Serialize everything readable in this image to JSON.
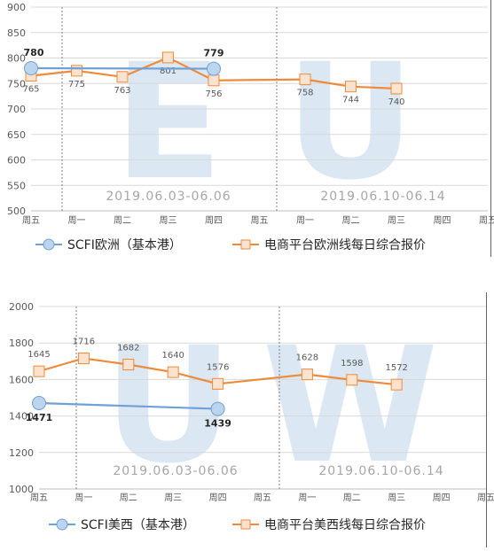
{
  "chart_data": [
    {
      "type": "line",
      "title": "",
      "watermark": [
        "E",
        "U"
      ],
      "categories": [
        "周五",
        "周一",
        "周二",
        "周三",
        "周四",
        "周五",
        "周一",
        "周二",
        "周三",
        "周四",
        "周五"
      ],
      "ylim": [
        500,
        900
      ],
      "yticks": [
        500,
        550,
        600,
        650,
        700,
        750,
        800,
        850,
        900
      ],
      "grid": true,
      "legend_position": "bottom",
      "week_labels": [
        "2019.06.03-06.06",
        "2019.06.10-06.14"
      ],
      "series": [
        {
          "name": "SCFI欧洲（基本港）",
          "color": "#6fa0d6",
          "marker": "circle",
          "points": [
            {
              "x": "周五",
              "y": 780,
              "label": "780"
            },
            {
              "x": "周四",
              "y": 779,
              "label": "779"
            }
          ]
        },
        {
          "name": "电商平台欧洲线每日综合报价",
          "color": "#ed8b3a",
          "marker": "square",
          "values": [
            765,
            775,
            763,
            801,
            756,
            null,
            758,
            744,
            740,
            null,
            null
          ],
          "labels": [
            "765",
            "775",
            "763",
            "801",
            "756",
            "",
            "758",
            "744",
            "740",
            "",
            ""
          ]
        }
      ]
    },
    {
      "type": "line",
      "title": "",
      "watermark": [
        "U",
        "W"
      ],
      "categories": [
        "周五",
        "周一",
        "周二",
        "周三",
        "周四",
        "周五",
        "周一",
        "周二",
        "周三",
        "周四",
        "周五"
      ],
      "ylim": [
        1000,
        2000
      ],
      "yticks": [
        1000,
        1200,
        1400,
        1600,
        1800,
        2000
      ],
      "grid": true,
      "legend_position": "bottom",
      "week_labels": [
        "2019.06.03-06.06",
        "2019.06.10-06.14"
      ],
      "series": [
        {
          "name": "SCFI美西（基本港）",
          "color": "#6fa0d6",
          "marker": "circle",
          "points": [
            {
              "x": "周五",
              "y": 1471,
              "label": "1471"
            },
            {
              "x": "周四",
              "y": 1439,
              "label": "1439"
            }
          ]
        },
        {
          "name": "电商平台美西线每日综合报价",
          "color": "#ed8b3a",
          "marker": "square",
          "values": [
            1645,
            1716,
            1682,
            1640,
            1576,
            null,
            1628,
            1598,
            1572,
            null,
            null
          ],
          "labels": [
            "1645",
            "1716",
            "1682",
            "1640",
            "1576",
            "",
            "1628",
            "1598",
            "1572",
            "",
            ""
          ]
        }
      ]
    }
  ]
}
